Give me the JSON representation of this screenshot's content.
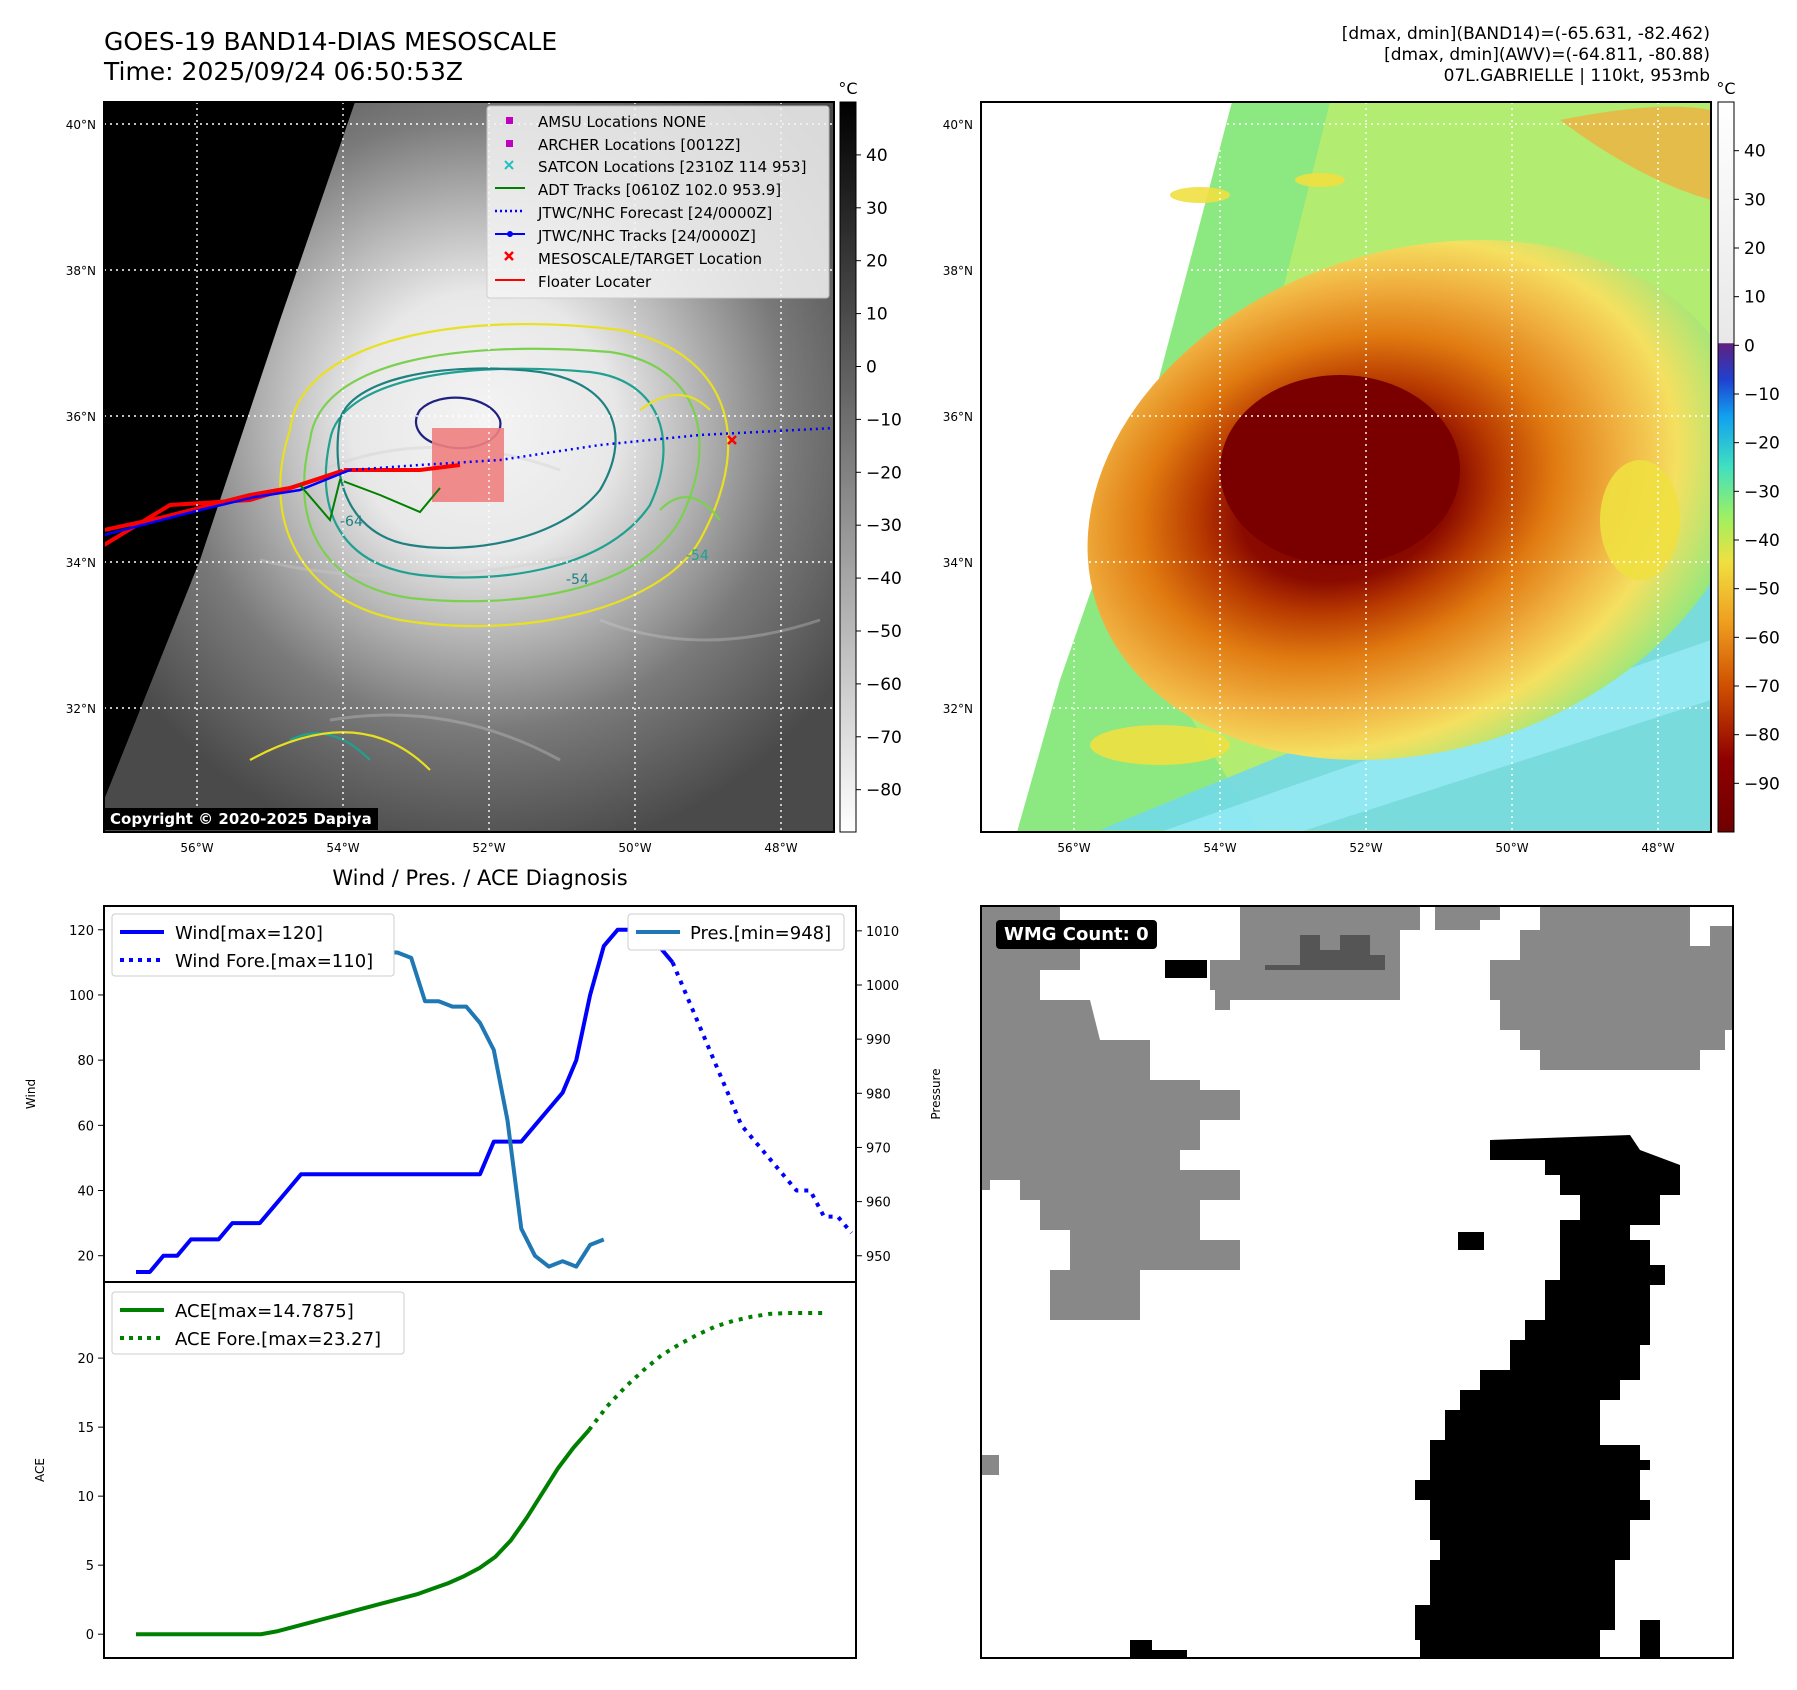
{
  "header": {
    "title_line1": "GOES-19 BAND14-DIAS MESOSCALE",
    "title_line2": "Time: 2025/09/24 06:50:53Z",
    "right_line1": "[dmax, dmin](BAND14)=(-65.631, -82.462)",
    "right_line2": "[dmax, dmin](AWV)=(-64.811, -80.88)",
    "right_line3": "07L.GABRIELLE | 110kt, 953mb"
  },
  "map": {
    "lat_labels": [
      "40°N",
      "38°N",
      "36°N",
      "34°N",
      "32°N"
    ],
    "lon_labels": [
      "56°W",
      "54°W",
      "52°W",
      "50°W",
      "48°W"
    ],
    "copyright": "Copyright © 2020-2025 Dapiya",
    "contour_labels": [
      "-54",
      "-64",
      "-54"
    ],
    "legend": [
      {
        "label": "AMSU Locations NONE",
        "marker": "square",
        "color": "#c000c0"
      },
      {
        "label": "ARCHER Locations [0012Z]",
        "marker": "square",
        "color": "#c000c0"
      },
      {
        "label": "SATCON Locations [2310Z 114 953]",
        "marker": "x",
        "color": "#20c0c0"
      },
      {
        "label": "ADT Tracks [0610Z 102.0 953.9]",
        "marker": "line",
        "color": "#008000"
      },
      {
        "label": "JTWC/NHC Forecast [24/0000Z]",
        "marker": "dotted",
        "color": "#0000ff"
      },
      {
        "label": "JTWC/NHC Tracks [24/0000Z]",
        "marker": "line-dot",
        "color": "#0000ff"
      },
      {
        "label": "MESOSCALE/TARGET Location",
        "marker": "x",
        "color": "#ff0000"
      },
      {
        "label": "Floater Locater",
        "marker": "line",
        "color": "#ff0000"
      }
    ]
  },
  "colorbar_gray": {
    "unit": "°C",
    "ticks": [
      "40",
      "30",
      "20",
      "10",
      "0",
      "−10",
      "−20",
      "−30",
      "−40",
      "−50",
      "−60",
      "−70",
      "−80"
    ]
  },
  "colorbar_color": {
    "unit": "°C",
    "ticks": [
      "40",
      "30",
      "20",
      "10",
      "0",
      "−10",
      "−20",
      "−30",
      "−40",
      "−50",
      "−60",
      "−70",
      "−80",
      "−90"
    ]
  },
  "diag": {
    "title": "Wind / Pres. / ACE Diagnosis",
    "wind_ylabel": "Wind",
    "pres_ylabel": "Pressure",
    "ace_ylabel": "ACE",
    "wind_legend": [
      "Wind[max=120]",
      "Wind Fore.[max=110]"
    ],
    "pres_legend": "Pres.[min=948]",
    "ace_legend": [
      "ACE[max=14.7875]",
      "ACE Fore.[max=23.27]"
    ],
    "wmg": "WMG Count: 0"
  },
  "chart_data": [
    {
      "type": "line",
      "title": "Wind / Pres. / ACE Diagnosis",
      "ylabel": "Wind",
      "ylim": [
        15,
        123
      ],
      "y_ticks": [
        20,
        40,
        60,
        80,
        100,
        120
      ],
      "series": [
        {
          "name": "Wind[max=120]",
          "color": "#0000ff",
          "style": "solid",
          "values": [
            15,
            15,
            20,
            20,
            25,
            25,
            25,
            30,
            30,
            30,
            35,
            40,
            45,
            45,
            45,
            45,
            45,
            45,
            45,
            45,
            45,
            45,
            45,
            45,
            45,
            45,
            55,
            55,
            55,
            60,
            65,
            70,
            80,
            100,
            115,
            120,
            120,
            120,
            115,
            110
          ]
        },
        {
          "name": "Wind Fore.[max=110]",
          "color": "#0000ff",
          "style": "dotted",
          "values": [
            110,
            100,
            90,
            80,
            70,
            60,
            55,
            50,
            45,
            40,
            40,
            32,
            32,
            27
          ]
        }
      ]
    },
    {
      "type": "line",
      "ylabel": "Pressure",
      "ylim": [
        947,
        1012
      ],
      "y_ticks": [
        950,
        960,
        970,
        980,
        990,
        1000,
        1010
      ],
      "series": [
        {
          "name": "Pres.[min=948]",
          "color": "#1f77b4",
          "style": "solid",
          "values": [
            1012,
            1012,
            1011,
            1011,
            1010,
            1009,
            1008,
            1008,
            1007,
            1006,
            1006,
            1006,
            1006,
            1006,
            1006,
            1006,
            1006,
            1006,
            1006,
            1006,
            1005,
            997,
            997,
            996,
            996,
            993,
            988,
            975,
            955,
            950,
            948,
            949,
            948,
            952,
            953
          ]
        }
      ]
    },
    {
      "type": "line",
      "ylabel": "ACE",
      "ylim": [
        -1,
        24.5
      ],
      "y_ticks": [
        0,
        5,
        10,
        15,
        20
      ],
      "series": [
        {
          "name": "ACE[max=14.7875]",
          "color": "#008000",
          "style": "solid",
          "values": [
            0,
            0,
            0,
            0,
            0,
            0,
            0,
            0,
            0,
            0.2,
            0.5,
            0.8,
            1.1,
            1.4,
            1.7,
            2.0,
            2.3,
            2.6,
            2.9,
            3.3,
            3.7,
            4.2,
            4.8,
            5.6,
            6.8,
            8.4,
            10.2,
            12.0,
            13.5,
            14.7875
          ]
        },
        {
          "name": "ACE Fore.[max=23.27]",
          "color": "#008000",
          "style": "dotted",
          "values": [
            14.79,
            16.5,
            17.9,
            19.1,
            20.2,
            21.0,
            21.7,
            22.3,
            22.7,
            23.0,
            23.2,
            23.27,
            23.27,
            23.27
          ]
        }
      ]
    }
  ]
}
